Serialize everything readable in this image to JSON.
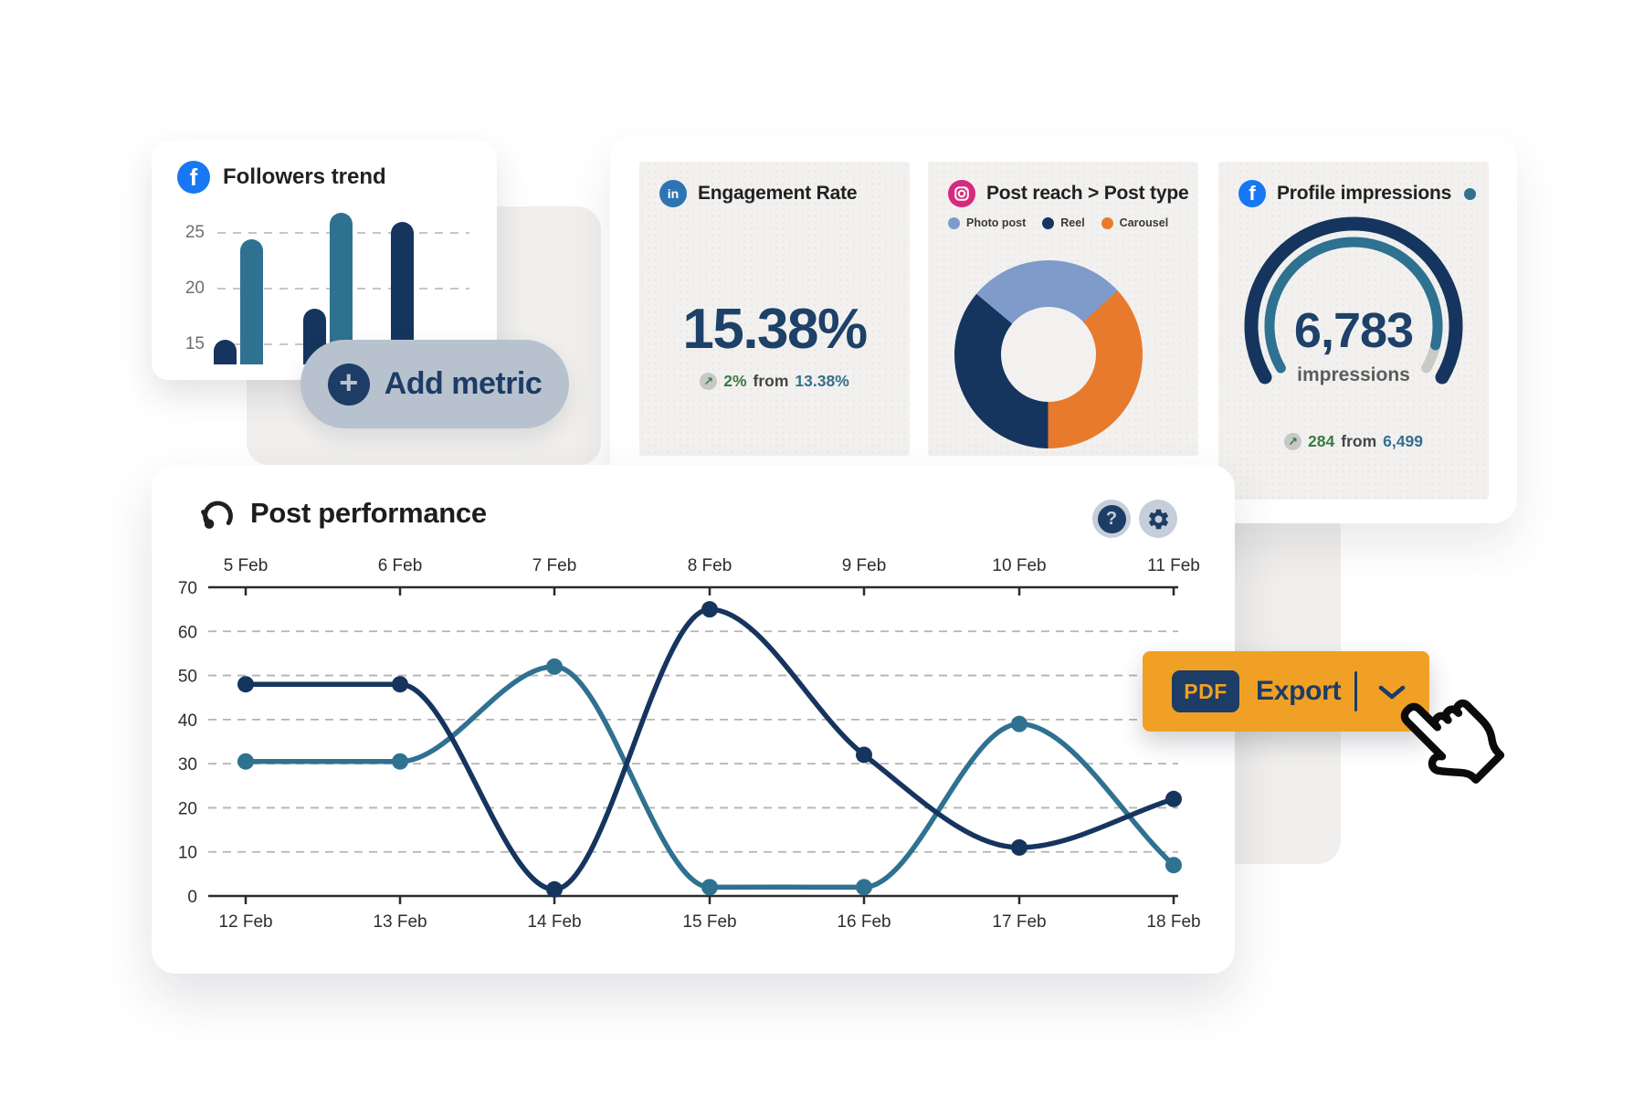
{
  "icons": {
    "facebook": "f",
    "linkedin": "in",
    "plus": "+",
    "question": "?"
  },
  "colors": {
    "navy": "#16355e",
    "navy_text": "#1d4168",
    "teal": "#2f7190",
    "teal_text": "#33708f",
    "orange": "#e87a2e",
    "light_blue": "#7f9bca",
    "amber": "#f0a125",
    "green": "#3b7a41",
    "card_bg": "#f2f1ef",
    "shape_bg": "#f0efed",
    "pill_bg": "#b8c2ce",
    "icon_button_bg": "#c5ced9",
    "gauge_rest": "#c9c9c7",
    "grid": "#b3b3b3",
    "axis": "#2b2b2b",
    "facebook": "#1877f2",
    "linkedin": "#2e74b5",
    "instagram": "#d62b7d"
  },
  "followers_card": {
    "title": "Followers trend"
  },
  "add_metric": {
    "label": "Add metric"
  },
  "engagement_card": {
    "title": "Engagement Rate",
    "value": "15.38%",
    "delta_arrow": "↗",
    "delta_change": "2%",
    "delta_from": "from",
    "delta_previous": "13.38%"
  },
  "post_reach_card": {
    "title": "Post reach > Post type"
  },
  "impressions_card": {
    "title": "Profile impressions",
    "value": "6,783",
    "unit": "impressions",
    "delta_arrow": "↗",
    "delta_change": "284",
    "delta_from": "from",
    "delta_previous": "6,499"
  },
  "performance_card": {
    "title": "Post performance",
    "help_glyph": "?"
  },
  "export_button": {
    "badge": "PDF",
    "label": "Export"
  },
  "chart_data": [
    {
      "id": "followers_trend",
      "type": "bar",
      "title": "Followers trend",
      "values": [
        15.4,
        24.4,
        18.2,
        26.8,
        26
      ],
      "bar_colors": [
        "#16355e",
        "#2f7190",
        "#16355e",
        "#2f7190",
        "#16355e"
      ],
      "y_ticks": [
        25,
        20,
        15
      ],
      "baseline_value": 13.2,
      "grid": "dashed"
    },
    {
      "id": "engagement_rate",
      "type": "kpi",
      "title": "Engagement Rate",
      "value": 15.38,
      "unit": "%",
      "previous": 13.38,
      "delta": "2%",
      "trend": "up"
    },
    {
      "id": "post_reach_by_type",
      "type": "pie",
      "title": "Post reach > Post type",
      "legend": [
        {
          "label": "Photo post",
          "color": "#7f9bca"
        },
        {
          "label": "Reel",
          "color": "#16355e"
        },
        {
          "label": "Carousel",
          "color": "#e87a2e"
        }
      ],
      "segments_clockwise": [
        {
          "label": "Photo post",
          "value": 27,
          "color": "#7f9bca"
        },
        {
          "label": "Carousel",
          "value": 37,
          "color": "#e87a2e"
        },
        {
          "label": "Reel",
          "value": 36,
          "color": "#16355e"
        }
      ],
      "start_angle_deg": -50,
      "hole_ratio": 0.5
    },
    {
      "id": "profile_impressions",
      "type": "gauge",
      "title": "Profile impressions",
      "value": 6783,
      "value_display": "6,783",
      "unit": "impressions",
      "previous": 6499,
      "delta": 284,
      "progress": 0.93,
      "arc_span_deg": 240,
      "trend": "up"
    },
    {
      "id": "post_performance",
      "type": "line",
      "title": "Post performance",
      "x_top_labels": [
        "5 Feb",
        "6 Feb",
        "7 Feb",
        "8 Feb",
        "9 Feb",
        "10 Feb",
        "11 Feb"
      ],
      "x_bottom_labels": [
        "12 Feb",
        "13 Feb",
        "14 Feb",
        "15 Feb",
        "16 Feb",
        "17 Feb",
        "18 Feb"
      ],
      "y_ticks": [
        0,
        10,
        20,
        30,
        40,
        50,
        60,
        70
      ],
      "ylim": [
        0,
        70
      ],
      "grid": "horizontal dashed",
      "legend_position": "none",
      "series": [
        {
          "name": "series-dark-navy",
          "color": "#16355e",
          "values": [
            48,
            48,
            1.5,
            65,
            32,
            11,
            22
          ]
        },
        {
          "name": "series-teal",
          "color": "#2f7190",
          "values": [
            30.5,
            30.5,
            52,
            2,
            2,
            39,
            7
          ]
        }
      ]
    }
  ]
}
